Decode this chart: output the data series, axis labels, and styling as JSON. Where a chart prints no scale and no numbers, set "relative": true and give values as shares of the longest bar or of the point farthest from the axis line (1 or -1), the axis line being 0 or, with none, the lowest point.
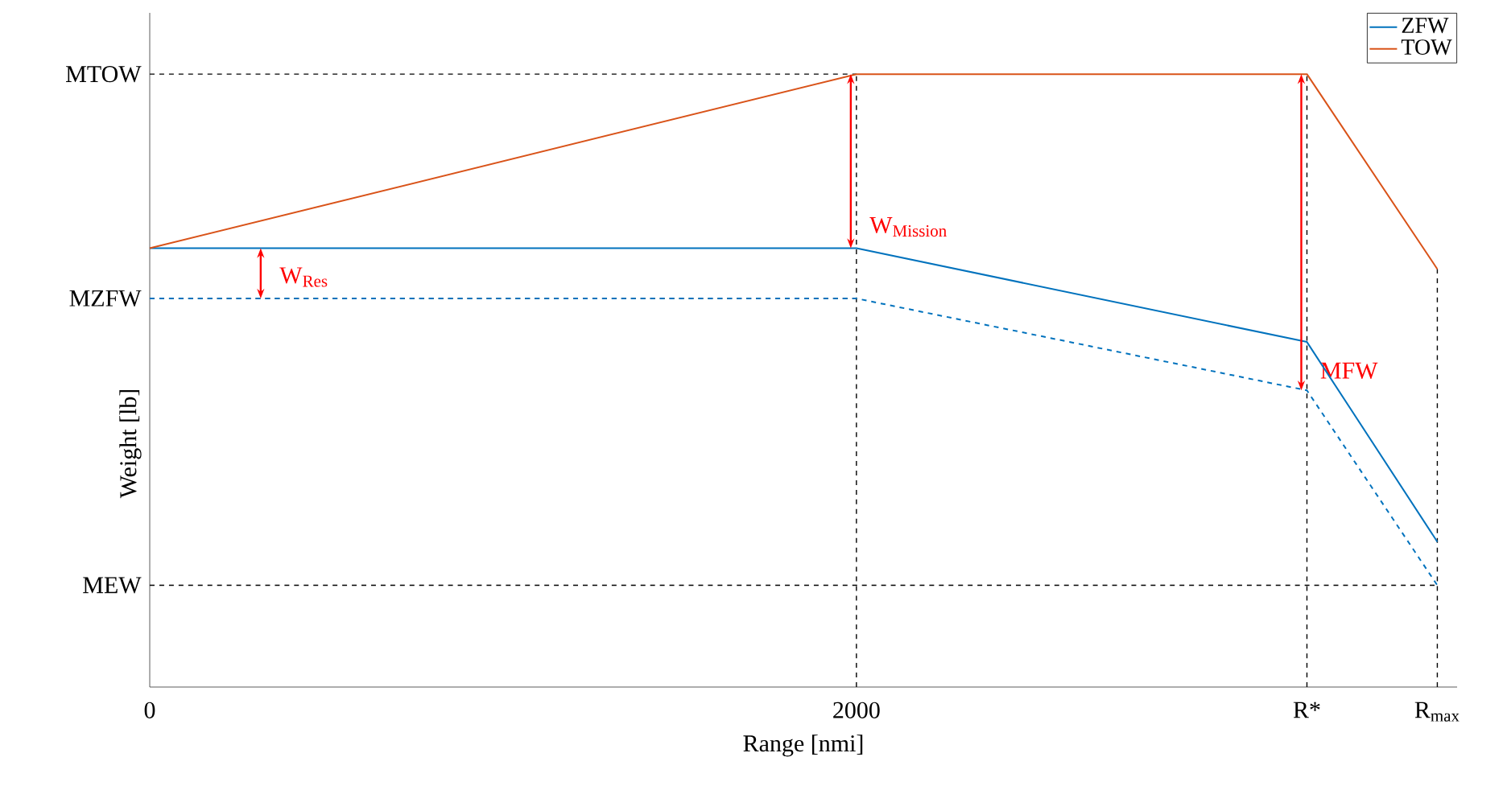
{
  "chart_data": {
    "type": "line",
    "xlabel": "Range [nmi]",
    "ylabel": "Weight [lb]",
    "relative": true,
    "xlim": [
      0,
      3700
    ],
    "xticks": [
      0,
      2000,
      {
        "value": 3275,
        "label": "R*"
      },
      {
        "value": 3644,
        "label": "R$_{max}$"
      }
    ],
    "series": [
      {
        "name": "ZFW",
        "color": "#0072bd",
        "x": [
          0,
          2000,
          3275,
          3644
        ],
        "values": [
          0.716,
          0.716,
          0.563,
          0.237
        ]
      },
      {
        "name": "TOW",
        "color": "#d95319",
        "x": [
          0,
          2000,
          3275,
          3644
        ],
        "values": [
          0.716,
          1,
          1,
          0.682
        ]
      },
      {
        "color": "#0072bd",
        "line_style": "dashed",
        "x": [
          0,
          2000,
          3275,
          3644
        ],
        "values": [
          0.634,
          0.634,
          0.484,
          0.166
        ]
      }
    ],
    "ref_lines": [
      {
        "axis": "y",
        "value": 1,
        "label": "MTOW",
        "color": "#000000",
        "line_style": "dashed"
      },
      {
        "axis": "y",
        "value": 0.634,
        "label": "MZFW",
        "color": "#000000",
        "line_style": "dashed"
      },
      {
        "axis": "y",
        "value": 0.166,
        "label": "MEW",
        "color": "#000000",
        "line_style": "dashed"
      },
      {
        "axis": "x",
        "value": 2000,
        "color": "#000000",
        "line_style": "dashed"
      },
      {
        "axis": "x",
        "value": 3275,
        "color": "#000000",
        "line_style": "dashed"
      },
      {
        "axis": "x",
        "value": 3644,
        "color": "#000000",
        "line_style": "dashed"
      }
    ],
    "annotations": [
      {
        "text": "W$_{Res}$",
        "x": 330,
        "y": 0.634
      },
      {
        "text": "W$_{Mission}$",
        "x": 2000,
        "y": 0.716
      },
      {
        "text": "MFW",
        "x": 3275,
        "y": 0.484
      }
    ],
    "legend": "top right",
    "marker": "none"
  }
}
